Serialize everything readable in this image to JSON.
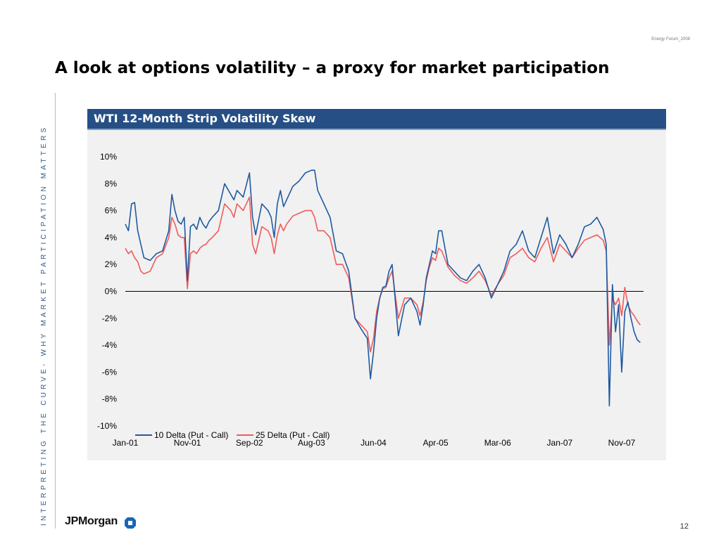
{
  "header": {
    "forum": "Energy Forum_2008"
  },
  "page_title": "A look at options volatility – a proxy for market participation",
  "side_text": "INTERPRETING THE CURVE- WHY MARKET PARTICIPATION MATTERS",
  "logo": {
    "text": "JPMorgan",
    "icon": "chase-octagon-icon"
  },
  "page_number": "12",
  "chart_data": {
    "type": "line",
    "title": "WTI 12-Month Strip Volatility Skew",
    "xlabel": "",
    "ylabel": "",
    "ylim": [
      -10,
      10
    ],
    "y_ticks": [
      "10%",
      "8%",
      "6%",
      "4%",
      "2%",
      "0%",
      "-2%",
      "-4%",
      "-6%",
      "-8%",
      "-10%"
    ],
    "y_tick_values": [
      10,
      8,
      6,
      4,
      2,
      0,
      -2,
      -4,
      -6,
      -8,
      -10
    ],
    "x_ticks": [
      "Jan-01",
      "Nov-01",
      "Sep-02",
      "Aug-03",
      "Jun-04",
      "Apr-05",
      "Mar-06",
      "Jan-07",
      "Nov-07"
    ],
    "x_tick_positions": [
      0,
      1,
      2,
      3,
      4,
      5,
      6,
      7,
      8
    ],
    "zero_line": true,
    "legend_position": "bottom-left",
    "series": [
      {
        "name": "10 Delta (Put - Call)",
        "color": "#1f5aa0",
        "x": [
          0,
          0.05,
          0.1,
          0.15,
          0.2,
          0.25,
          0.3,
          0.4,
          0.5,
          0.6,
          0.7,
          0.75,
          0.8,
          0.85,
          0.9,
          0.95,
          1.0,
          1.05,
          1.1,
          1.15,
          1.2,
          1.25,
          1.3,
          1.35,
          1.4,
          1.5,
          1.6,
          1.7,
          1.75,
          1.8,
          1.9,
          2.0,
          2.05,
          2.1,
          2.2,
          2.3,
          2.35,
          2.4,
          2.45,
          2.5,
          2.55,
          2.6,
          2.7,
          2.8,
          2.9,
          3.0,
          3.05,
          3.1,
          3.2,
          3.3,
          3.4,
          3.5,
          3.6,
          3.7,
          3.8,
          3.9,
          3.95,
          4.0,
          4.05,
          4.1,
          4.15,
          4.2,
          4.25,
          4.3,
          4.4,
          4.5,
          4.6,
          4.7,
          4.75,
          4.8,
          4.85,
          4.9,
          4.95,
          5.0,
          5.05,
          5.1,
          5.2,
          5.3,
          5.4,
          5.5,
          5.6,
          5.7,
          5.8,
          5.9,
          6.0,
          6.1,
          6.2,
          6.3,
          6.4,
          6.5,
          6.6,
          6.7,
          6.8,
          6.9,
          7.0,
          7.1,
          7.2,
          7.3,
          7.4,
          7.5,
          7.6,
          7.7,
          7.75,
          7.8,
          7.85,
          7.9,
          7.95,
          8.0,
          8.05,
          8.1,
          8.15,
          8.2,
          8.25,
          8.3
        ],
        "values": [
          5.0,
          4.5,
          6.5,
          6.6,
          4.5,
          3.5,
          2.5,
          2.3,
          2.8,
          3.0,
          4.5,
          7.2,
          6.0,
          5.2,
          5.0,
          5.5,
          0.8,
          4.8,
          5.0,
          4.6,
          5.5,
          5.0,
          4.7,
          5.2,
          5.5,
          6.0,
          8.0,
          7.2,
          6.8,
          7.5,
          7.0,
          8.8,
          5.5,
          4.2,
          6.5,
          6.0,
          5.5,
          4.0,
          6.5,
          7.5,
          6.3,
          6.8,
          7.8,
          8.2,
          8.8,
          9.0,
          9.0,
          7.5,
          6.5,
          5.5,
          3.0,
          2.8,
          1.5,
          -2.0,
          -2.8,
          -3.5,
          -6.5,
          -4.5,
          -2.0,
          -0.5,
          0.3,
          0.4,
          1.5,
          2.0,
          -3.3,
          -1.0,
          -0.5,
          -1.5,
          -2.5,
          -1.0,
          1.0,
          2.0,
          3.0,
          2.8,
          4.5,
          4.5,
          2.0,
          1.5,
          1.0,
          0.8,
          1.5,
          2.0,
          1.0,
          -0.5,
          0.5,
          1.5,
          3.0,
          3.5,
          4.5,
          3.0,
          2.5,
          4.0,
          5.5,
          2.8,
          4.2,
          3.5,
          2.5,
          3.5,
          4.8,
          5.0,
          5.5,
          4.6,
          3.5,
          -8.5,
          0.5,
          -3.0,
          -1.0,
          -6.0,
          -1.5,
          -0.8,
          -2.0,
          -3.0,
          -3.6,
          -3.8
        ]
      },
      {
        "name": "25 Delta (Put - Call)",
        "color": "#f25a5a",
        "x": [
          0,
          0.05,
          0.1,
          0.15,
          0.2,
          0.25,
          0.3,
          0.4,
          0.5,
          0.6,
          0.7,
          0.75,
          0.8,
          0.85,
          0.9,
          0.95,
          1.0,
          1.05,
          1.1,
          1.15,
          1.2,
          1.25,
          1.3,
          1.35,
          1.4,
          1.5,
          1.6,
          1.7,
          1.75,
          1.8,
          1.9,
          2.0,
          2.05,
          2.1,
          2.2,
          2.3,
          2.35,
          2.4,
          2.45,
          2.5,
          2.55,
          2.6,
          2.7,
          2.8,
          2.9,
          3.0,
          3.05,
          3.1,
          3.2,
          3.3,
          3.4,
          3.5,
          3.6,
          3.7,
          3.8,
          3.9,
          3.95,
          4.0,
          4.05,
          4.1,
          4.15,
          4.2,
          4.25,
          4.3,
          4.4,
          4.5,
          4.6,
          4.7,
          4.75,
          4.8,
          4.85,
          4.9,
          4.95,
          5.0,
          5.05,
          5.1,
          5.2,
          5.3,
          5.4,
          5.5,
          5.6,
          5.7,
          5.8,
          5.9,
          6.0,
          6.1,
          6.2,
          6.3,
          6.4,
          6.5,
          6.6,
          6.7,
          6.8,
          6.9,
          7.0,
          7.1,
          7.2,
          7.3,
          7.4,
          7.5,
          7.6,
          7.7,
          7.75,
          7.8,
          7.85,
          7.9,
          7.95,
          8.0,
          8.05,
          8.1,
          8.15,
          8.2,
          8.25,
          8.3
        ],
        "values": [
          3.2,
          2.8,
          3.0,
          2.5,
          2.2,
          1.5,
          1.3,
          1.5,
          2.5,
          2.8,
          4.0,
          5.5,
          5.0,
          4.2,
          4.0,
          4.0,
          0.2,
          2.8,
          3.0,
          2.8,
          3.2,
          3.4,
          3.5,
          3.8,
          4.0,
          4.5,
          6.5,
          6.0,
          5.5,
          6.5,
          6.0,
          7.0,
          3.5,
          2.8,
          4.8,
          4.5,
          4.0,
          2.8,
          4.2,
          5.0,
          4.5,
          5.0,
          5.6,
          5.8,
          6.0,
          6.0,
          5.5,
          4.5,
          4.5,
          4.0,
          2.0,
          2.0,
          1.0,
          -2.0,
          -2.5,
          -3.0,
          -4.5,
          -3.5,
          -1.5,
          -0.5,
          0.2,
          0.3,
          1.0,
          1.5,
          -2.0,
          -0.5,
          -0.5,
          -1.0,
          -1.8,
          -0.8,
          0.8,
          1.8,
          2.5,
          2.3,
          3.2,
          3.0,
          1.8,
          1.2,
          0.8,
          0.6,
          1.0,
          1.5,
          0.8,
          -0.3,
          0.5,
          1.2,
          2.5,
          2.8,
          3.2,
          2.5,
          2.2,
          3.2,
          4.0,
          2.2,
          3.5,
          3.0,
          2.5,
          3.2,
          3.8,
          4.0,
          4.2,
          3.8,
          3.0,
          -4.0,
          -0.5,
          -1.0,
          -0.5,
          -1.8,
          0.3,
          -1.0,
          -1.5,
          -1.8,
          -2.2,
          -2.5
        ]
      }
    ]
  }
}
